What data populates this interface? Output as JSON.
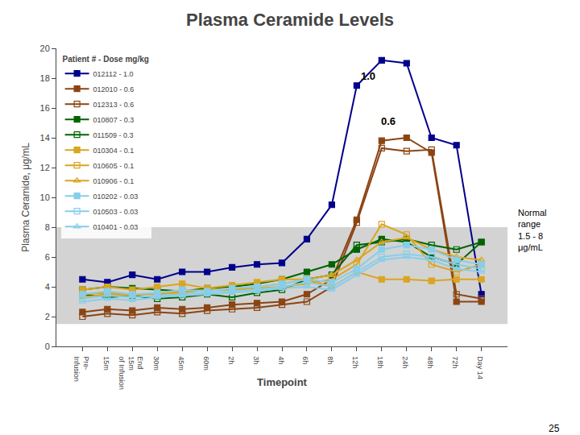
{
  "chart_data": {
    "type": "line",
    "title": "Plasma Ceramide Levels",
    "xlabel": "Timepoint",
    "ylabel": "Plasma Ceramide, μg/mL",
    "categories": [
      "Pre-\nInfusion",
      "15m",
      "End\n15m\nof Infusion",
      "30m",
      "45m",
      "60m",
      "2h",
      "3h",
      "4h",
      "6h",
      "8h",
      "12h",
      "18h",
      "24h",
      "48h",
      "72h",
      "Day 14"
    ],
    "ylim": [
      0,
      20
    ],
    "yticks": [
      0,
      2,
      4,
      6,
      8,
      10,
      12,
      14,
      16,
      18,
      20
    ],
    "grid": false,
    "legend": "upper left",
    "legend_title": "Patient # - Dose mg/kg",
    "bands": [
      {
        "low": 1.5,
        "high": 8.0,
        "color": "#d3d3d3",
        "label": "Normal\nrange\n1.5 - 8\nμg/mL"
      }
    ],
    "series": [
      {
        "name": "012112 - 1.0",
        "color": "#00008B",
        "marker": "square",
        "values": [
          4.5,
          4.3,
          4.8,
          4.5,
          5.0,
          5.0,
          5.3,
          5.5,
          5.6,
          7.2,
          9.5,
          17.5,
          19.2,
          19.0,
          14.0,
          13.5,
          3.5
        ]
      },
      {
        "name": "012010 - 0.6",
        "color": "#8B4513",
        "marker": "square",
        "values": [
          2.3,
          2.5,
          2.4,
          2.6,
          2.5,
          2.6,
          2.8,
          2.9,
          3.0,
          3.5,
          4.5,
          8.5,
          13.8,
          14.0,
          13.0,
          3.0,
          3.0
        ]
      },
      {
        "name": "012313 - 0.6",
        "color": "#8B4513",
        "marker": "square-open",
        "values": [
          2.0,
          2.2,
          2.1,
          2.3,
          2.2,
          2.4,
          2.5,
          2.6,
          2.8,
          3.0,
          4.0,
          8.3,
          13.3,
          13.1,
          13.2,
          3.5,
          3.2
        ]
      },
      {
        "name": "010807 - 0.3",
        "color": "#006400",
        "marker": "square",
        "values": [
          3.8,
          4.0,
          3.9,
          3.8,
          3.7,
          3.9,
          4.0,
          4.2,
          4.5,
          5.0,
          5.5,
          6.5,
          7.2,
          7.0,
          6.0,
          5.5,
          7.0
        ]
      },
      {
        "name": "011509 - 0.3",
        "color": "#006400",
        "marker": "square-open",
        "values": [
          3.5,
          3.3,
          3.4,
          3.2,
          3.3,
          3.5,
          3.3,
          3.6,
          3.8,
          4.5,
          4.8,
          6.8,
          7.0,
          7.2,
          6.8,
          6.5,
          7.0
        ]
      },
      {
        "name": "010304 - 0.1",
        "color": "#DAA520",
        "marker": "square",
        "values": [
          3.8,
          4.0,
          3.8,
          4.0,
          4.2,
          3.9,
          4.1,
          4.3,
          4.5,
          4.5,
          4.0,
          5.0,
          4.5,
          4.5,
          4.4,
          4.5,
          4.5
        ]
      },
      {
        "name": "010605 - 0.1",
        "color": "#DAA520",
        "marker": "square-open",
        "values": [
          3.5,
          3.6,
          3.5,
          3.5,
          3.6,
          3.8,
          3.8,
          3.9,
          4.0,
          4.2,
          4.5,
          5.5,
          8.2,
          7.5,
          5.5,
          5.0,
          5.5
        ]
      },
      {
        "name": "010906 - 0.1",
        "color": "#DAA520",
        "marker": "triangle-up-open",
        "values": [
          3.3,
          3.5,
          3.4,
          3.6,
          3.7,
          3.8,
          3.9,
          4.0,
          4.2,
          4.5,
          4.8,
          5.8,
          7.0,
          7.3,
          6.5,
          6.0,
          5.8
        ]
      },
      {
        "name": "010202 - 0.03",
        "color": "#87CEEB",
        "marker": "square",
        "values": [
          3.5,
          3.7,
          3.5,
          3.6,
          3.8,
          3.7,
          3.9,
          4.0,
          4.2,
          4.5,
          4.3,
          5.2,
          6.5,
          6.8,
          6.5,
          5.8,
          5.5
        ]
      },
      {
        "name": "010503 - 0.03",
        "color": "#87CEEB",
        "marker": "square-open",
        "values": [
          3.2,
          3.4,
          3.3,
          3.4,
          3.5,
          3.6,
          3.7,
          3.8,
          4.0,
          4.3,
          4.0,
          5.0,
          6.0,
          6.2,
          6.0,
          5.5,
          5.2
        ]
      },
      {
        "name": "010401 - 0.03",
        "color": "#87CEEB",
        "marker": "triangle-up-open",
        "values": [
          3.0,
          3.2,
          3.1,
          3.3,
          3.4,
          3.5,
          3.6,
          3.7,
          3.9,
          4.0,
          3.8,
          4.8,
          5.8,
          6.0,
          5.8,
          5.2,
          5.0
        ]
      }
    ],
    "annotations": [
      {
        "x": 11.1,
        "y": 17.6,
        "text": "1.0"
      },
      {
        "x": 11.9,
        "y": 14.6,
        "text": "0.6"
      }
    ],
    "footnote": "25"
  }
}
